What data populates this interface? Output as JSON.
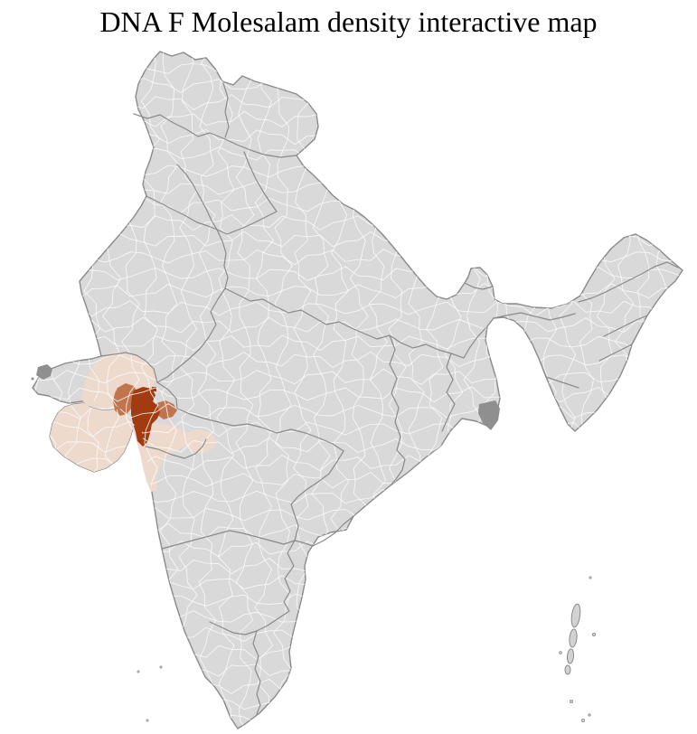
{
  "title": "DNA F Molesalam density interactive map",
  "map": {
    "colors": {
      "background": "#ffffff",
      "land": "#d9d9d9",
      "district_border": "#fafafa",
      "state_border": "#8a8a8a",
      "coast_outline": "#8a8a8a",
      "density_low": "#eedacd",
      "density_medium": "#c0754f",
      "density_high": "#a33b10",
      "dense_patch": "#8f8f8f",
      "island_fill": "#d2d2d2",
      "island_stroke": "#8a8a8a"
    }
  }
}
